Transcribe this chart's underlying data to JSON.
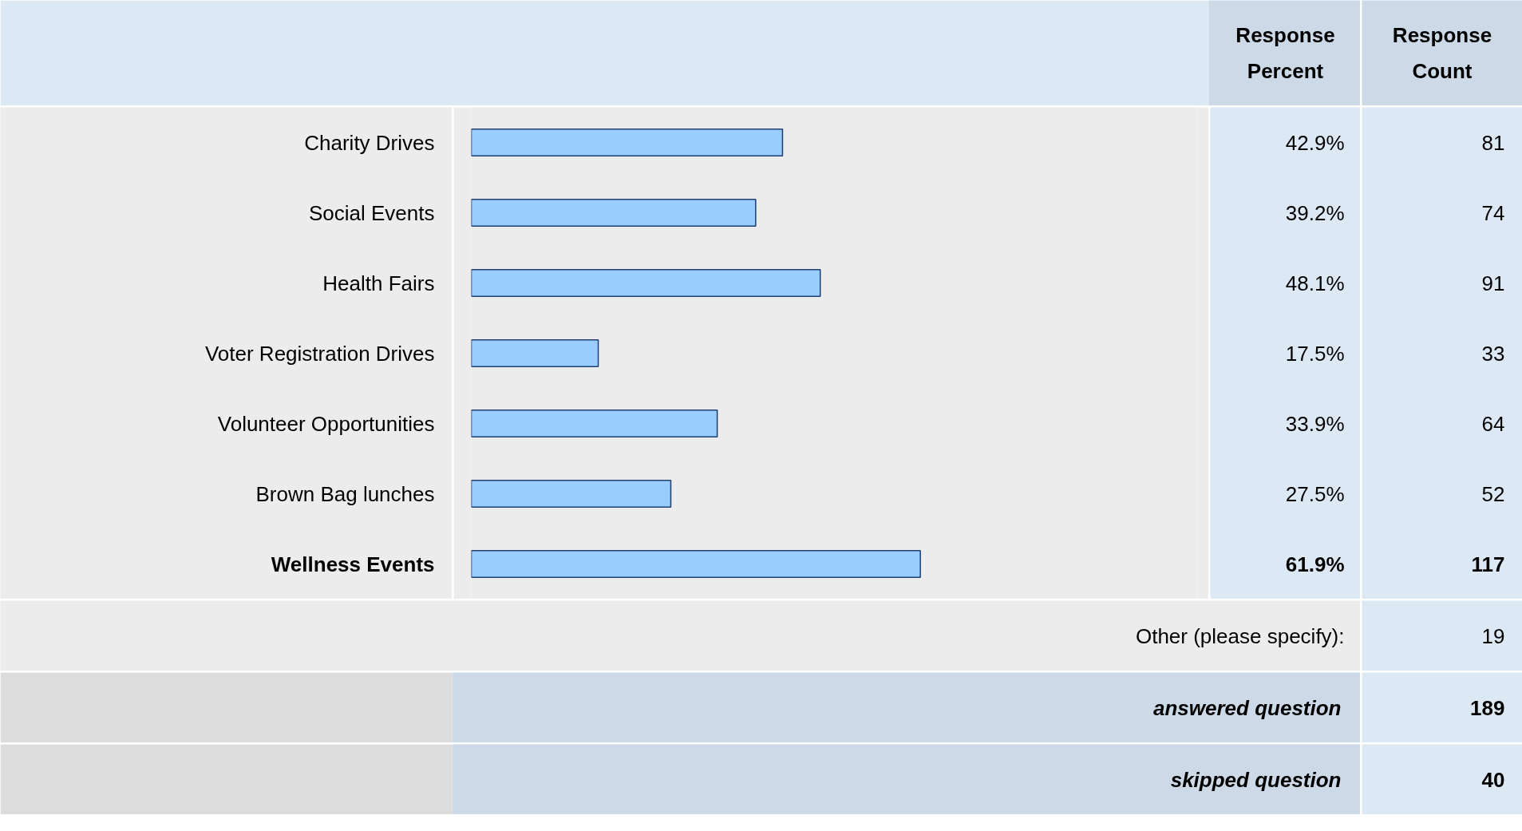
{
  "chart_data": {
    "type": "bar",
    "orientation": "horizontal",
    "categories": [
      "Charity Drives",
      "Social Events",
      "Health Fairs",
      "Voter Registration Drives",
      "Volunteer Opportunities",
      "Brown Bag lunches",
      "Wellness Events"
    ],
    "values": [
      42.9,
      39.2,
      48.1,
      17.5,
      33.9,
      27.5,
      61.9
    ],
    "value_labels": [
      "42.9%",
      "39.2%",
      "48.1%",
      "17.5%",
      "33.9%",
      "27.5%",
      "61.9%"
    ],
    "color": "#99ccff",
    "xlim": [
      0,
      100
    ],
    "tick_labels": false,
    "annotations": [
      "Response Percent",
      "Response Count",
      "81",
      "74",
      "91",
      "33",
      "64",
      "52",
      "117",
      "Other (please specify):",
      "19",
      "answered question",
      "189",
      "skipped question",
      "40"
    ]
  }
}
